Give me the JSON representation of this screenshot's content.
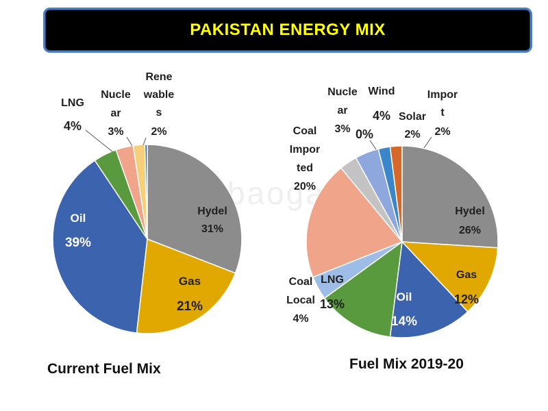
{
  "header": {
    "title": "PAKISTAN ENERGY MIX"
  },
  "watermark": "www.baogao8.com",
  "chart_data": [
    {
      "type": "pie",
      "title": "Current Fuel Mix",
      "slices": [
        {
          "label": "Hydel",
          "value": 31,
          "value_label": "31%",
          "color": "#8c8c8c"
        },
        {
          "label": "Gas",
          "value": 21,
          "value_label": "21%",
          "color": "#e0a800"
        },
        {
          "label": "Oil",
          "value": 39,
          "value_label": "39%",
          "color": "#3c63ad"
        },
        {
          "label": "LNG",
          "value": 4,
          "value_label": "4%",
          "color": "#5a9a3e"
        },
        {
          "label": "Nuclear",
          "value": 3,
          "value_label": "3%",
          "color": "#f0a58a"
        },
        {
          "label": "Renewables",
          "value": 2,
          "value_label": "2%",
          "color": "#f5cf7a"
        },
        {
          "label": "",
          "value": 0.4,
          "value_label": "",
          "color": "#2e6db5"
        }
      ],
      "label_lines": {
        "Hydel": [
          "Hydel"
        ],
        "Gas": [
          "Gas"
        ],
        "Oil": [
          "Oil"
        ],
        "LNG": [
          "LNG"
        ],
        "Nuclear": [
          "Nucle",
          "ar"
        ],
        "Renewables": [
          "Rene",
          "wable",
          "s"
        ]
      }
    },
    {
      "type": "pie",
      "title": "Fuel Mix 2019-20",
      "slices": [
        {
          "label": "Hydel",
          "value": 26,
          "value_label": "26%",
          "color": "#8c8c8c"
        },
        {
          "label": "Gas",
          "value": 12,
          "value_label": "12%",
          "color": "#e0a800"
        },
        {
          "label": "Oil",
          "value": 14,
          "value_label": "14%",
          "color": "#3c63ad"
        },
        {
          "label": "LNG",
          "value": 13,
          "value_label": "13%",
          "color": "#5a9a3e"
        },
        {
          "label": "Coal Local",
          "value": 4,
          "value_label": "4%",
          "color": "#9dbde6"
        },
        {
          "label": "Coal Imported",
          "value": 20,
          "value_label": "20%",
          "color": "#f0a58a"
        },
        {
          "label": "Nuclear",
          "value": 3,
          "value_label": "3%",
          "color": "#c3c3c3"
        },
        {
          "label": "Wind",
          "value": 4,
          "value_label": "4%",
          "color": "#8ea7dc"
        },
        {
          "label": "Solar",
          "value": 2,
          "value_label": "2%",
          "color": "#3b86c8"
        },
        {
          "label": "Import",
          "value": 2,
          "value_label": "2%",
          "color": "#d6682a"
        }
      ],
      "extra_value_label": "0%",
      "label_lines": {
        "Hydel": [
          "Hydel"
        ],
        "Gas": [
          "Gas"
        ],
        "Oil": [
          "Oil"
        ],
        "LNG": [
          "LNG"
        ],
        "Coal Local": [
          "Coal",
          "Local"
        ],
        "Coal Imported": [
          "Coal",
          "Impor",
          "ted"
        ],
        "Nuclear": [
          "Nucle",
          "ar"
        ],
        "Wind": [
          "Wind"
        ],
        "Solar": [
          "Solar"
        ],
        "Import": [
          "Impor",
          "t"
        ]
      }
    }
  ]
}
